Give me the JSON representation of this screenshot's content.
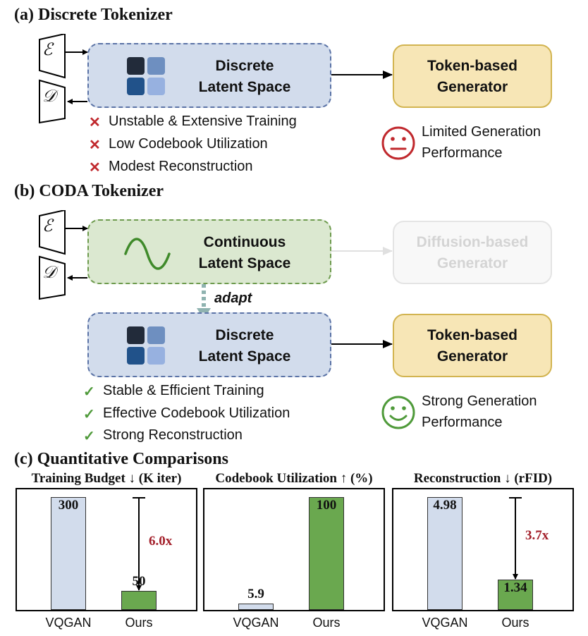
{
  "section_a": {
    "title": "(a) Discrete Tokenizer",
    "encoder_symbol": "ℰ",
    "decoder_symbol": "𝒟",
    "latent_line1": "Discrete",
    "latent_line2": "Latent Space",
    "generator_line1": "Token-based",
    "generator_line2": "Generator",
    "outcome_line1": "Limited Generation",
    "outcome_line2": "Performance",
    "drawbacks": [
      "Unstable & Extensive Training",
      "Low Codebook Utilization",
      "Modest Reconstruction"
    ]
  },
  "section_b": {
    "title": "(b) CODA Tokenizer",
    "encoder_symbol": "ℰ",
    "decoder_symbol": "𝒟",
    "continuous_line1": "Continuous",
    "continuous_line2": "Latent Space",
    "diffusion_line1": "Diffusion-based",
    "diffusion_line2": "Generator",
    "adapt_label": "adapt",
    "discrete_line1": "Discrete",
    "discrete_line2": "Latent Space",
    "generator_line1": "Token-based",
    "generator_line2": "Generator",
    "outcome_line1": "Strong Generation",
    "outcome_line2": "Performance",
    "benefits": [
      "Stable & Efficient Training",
      "Effective Codebook Utilization",
      "Strong Reconstruction"
    ]
  },
  "section_c": {
    "title": "(c) Quantitative Comparisons"
  },
  "colors": {
    "discrete_border": "#5b73a6",
    "continuous_border": "#6e9b4e",
    "generator_fill": "#f7e6b6",
    "bar_blue": "#d2dcec",
    "bar_green": "#6aa84f",
    "bad_red": "#c0282d",
    "good_green": "#4f9a3a",
    "factor_red": "#a31f2a",
    "codebook_tiles": [
      "#222b3a",
      "#6e8fc0",
      "#21528a",
      "#97b1e0"
    ]
  },
  "chart_data": [
    {
      "type": "bar",
      "title": "Training Budget ↓ (K iter)",
      "categories": [
        "VQGAN",
        "Ours"
      ],
      "values": [
        300,
        50
      ],
      "value_labels": [
        "300",
        "50"
      ],
      "ylim": [
        0,
        300
      ],
      "annotation": "6.0x",
      "grid": false
    },
    {
      "type": "bar",
      "title": "Codebook Utilization ↑ (%)",
      "categories": [
        "VQGAN",
        "Ours"
      ],
      "values": [
        5.9,
        100
      ],
      "value_labels": [
        "5.9",
        "100"
      ],
      "ylim": [
        0,
        100
      ],
      "annotation": "",
      "grid": false
    },
    {
      "type": "bar",
      "title": "Reconstruction ↓ (rFID)",
      "categories": [
        "VQGAN",
        "Ours"
      ],
      "values": [
        4.98,
        1.34
      ],
      "value_labels": [
        "4.98",
        "1.34"
      ],
      "ylim": [
        0,
        4.98
      ],
      "annotation": "3.7x",
      "grid": false
    }
  ]
}
